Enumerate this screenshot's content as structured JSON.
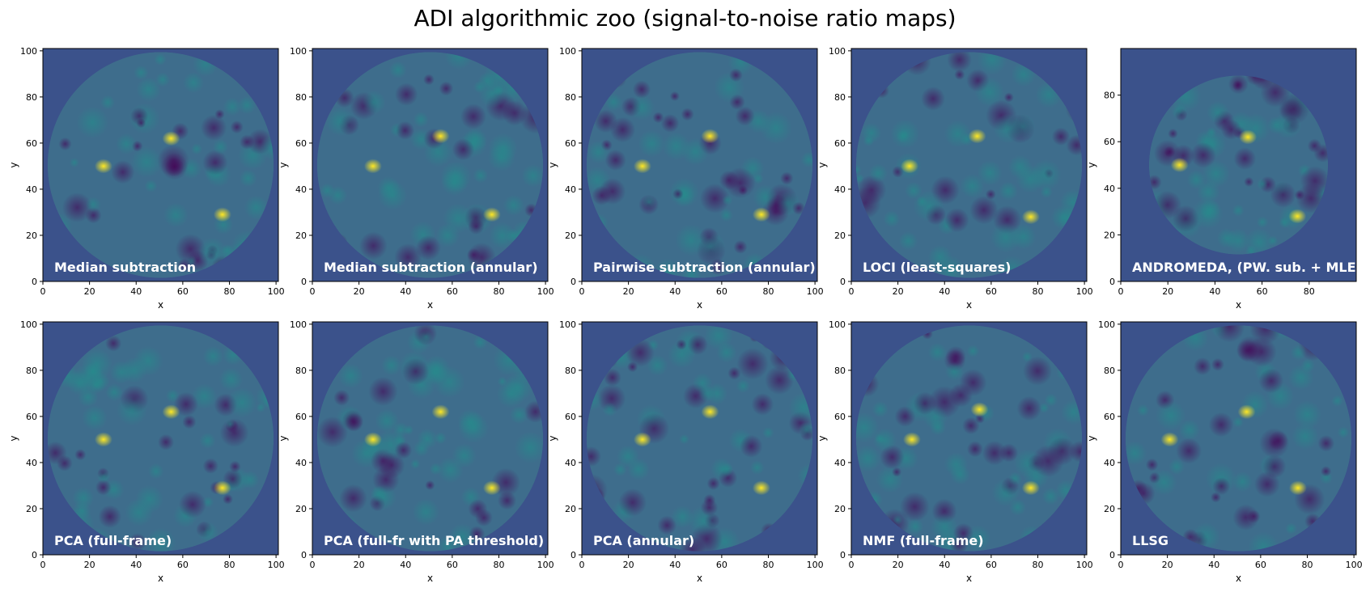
{
  "title": "ADI algorithmic zoo (signal-to-noise ratio maps)",
  "colors": {
    "background": "#3b528b",
    "low": "#440154",
    "mid": "#21918c",
    "high": "#fde725",
    "axes": "#000000"
  },
  "chart_data": [
    {
      "type": "heatmap",
      "label": "Median subtraction",
      "xlabel": "x",
      "ylabel": "y",
      "xlim": [
        0,
        101
      ],
      "ylim": [
        0,
        101
      ],
      "xticks": [
        "0",
        "20",
        "40",
        "60",
        "80",
        "100"
      ],
      "yticks": [
        "0",
        "20",
        "40",
        "60",
        "80",
        "100"
      ],
      "bright_sources": [
        [
          26,
          50
        ],
        [
          77,
          29
        ],
        [
          55,
          62
        ]
      ]
    },
    {
      "type": "heatmap",
      "label": "Median subtraction (annular)",
      "xlabel": "x",
      "ylabel": "y",
      "xlim": [
        0,
        101
      ],
      "ylim": [
        0,
        101
      ],
      "xticks": [
        "0",
        "20",
        "40",
        "60",
        "80",
        "100"
      ],
      "yticks": [
        "0",
        "20",
        "40",
        "60",
        "80",
        "100"
      ],
      "bright_sources": [
        [
          26,
          50
        ],
        [
          77,
          29
        ],
        [
          55,
          63
        ]
      ]
    },
    {
      "type": "heatmap",
      "label": "Pairwise subtraction (annular)",
      "xlabel": "x",
      "ylabel": "y",
      "xlim": [
        0,
        101
      ],
      "ylim": [
        0,
        101
      ],
      "xticks": [
        "0",
        "20",
        "40",
        "60",
        "80",
        "100"
      ],
      "yticks": [
        "0",
        "20",
        "40",
        "60",
        "80",
        "100"
      ],
      "bright_sources": [
        [
          26,
          50
        ],
        [
          77,
          29
        ],
        [
          55,
          63
        ]
      ]
    },
    {
      "type": "heatmap",
      "label": "LOCI (least-squares)",
      "xlabel": "x",
      "ylabel": "y",
      "xlim": [
        0,
        101
      ],
      "ylim": [
        0,
        101
      ],
      "xticks": [
        "0",
        "20",
        "40",
        "60",
        "80",
        "100"
      ],
      "yticks": [
        "0",
        "20",
        "40",
        "60",
        "80",
        "100"
      ],
      "bright_sources": [
        [
          25,
          50
        ],
        [
          77,
          28
        ],
        [
          54,
          63
        ]
      ]
    },
    {
      "type": "heatmap",
      "label": "ANDROMEDA, (PW. sub. + MLE)",
      "xlabel": "x",
      "ylabel": "y",
      "xlim": [
        0,
        100
      ],
      "ylim": [
        0,
        100
      ],
      "xticks": [
        "0",
        "20",
        "40",
        "60",
        "80"
      ],
      "yticks": [
        "0",
        "20",
        "40",
        "60",
        "80"
      ],
      "bright_sources": [
        [
          25,
          50
        ],
        [
          75,
          28
        ],
        [
          54,
          62
        ]
      ]
    },
    {
      "type": "heatmap",
      "label": "PCA (full-frame)",
      "xlabel": "x",
      "ylabel": "y",
      "xlim": [
        0,
        101
      ],
      "ylim": [
        0,
        101
      ],
      "xticks": [
        "0",
        "20",
        "40",
        "60",
        "80",
        "100"
      ],
      "yticks": [
        "0",
        "20",
        "40",
        "60",
        "80",
        "100"
      ],
      "bright_sources": [
        [
          26,
          50
        ],
        [
          77,
          29
        ],
        [
          55,
          62
        ]
      ]
    },
    {
      "type": "heatmap",
      "label": "PCA (full-fr with PA threshold)",
      "xlabel": "x",
      "ylabel": "y",
      "xlim": [
        0,
        101
      ],
      "ylim": [
        0,
        101
      ],
      "xticks": [
        "0",
        "20",
        "40",
        "60",
        "80",
        "100"
      ],
      "yticks": [
        "0",
        "20",
        "40",
        "60",
        "80",
        "100"
      ],
      "bright_sources": [
        [
          26,
          50
        ],
        [
          77,
          29
        ],
        [
          55,
          62
        ]
      ]
    },
    {
      "type": "heatmap",
      "label": "PCA (annular)",
      "xlabel": "x",
      "ylabel": "y",
      "xlim": [
        0,
        101
      ],
      "ylim": [
        0,
        101
      ],
      "xticks": [
        "0",
        "20",
        "40",
        "60",
        "80",
        "100"
      ],
      "yticks": [
        "0",
        "20",
        "40",
        "60",
        "80",
        "100"
      ],
      "bright_sources": [
        [
          26,
          50
        ],
        [
          77,
          29
        ],
        [
          55,
          62
        ]
      ]
    },
    {
      "type": "heatmap",
      "label": "NMF (full-frame)",
      "xlabel": "x",
      "ylabel": "y",
      "xlim": [
        0,
        101
      ],
      "ylim": [
        0,
        101
      ],
      "xticks": [
        "0",
        "20",
        "40",
        "60",
        "80",
        "100"
      ],
      "yticks": [
        "0",
        "20",
        "40",
        "60",
        "80",
        "100"
      ],
      "bright_sources": [
        [
          26,
          50
        ],
        [
          77,
          29
        ],
        [
          55,
          63
        ]
      ]
    },
    {
      "type": "heatmap",
      "label": "LLSG",
      "xlabel": "x",
      "ylabel": "y",
      "xlim": [
        0,
        101
      ],
      "ylim": [
        0,
        101
      ],
      "xticks": [
        "0",
        "20",
        "40",
        "60",
        "80",
        "100"
      ],
      "yticks": [
        "0",
        "20",
        "40",
        "60",
        "80",
        "100"
      ],
      "bright_sources": [
        [
          21,
          50
        ],
        [
          76,
          29
        ],
        [
          54,
          62
        ]
      ]
    }
  ]
}
